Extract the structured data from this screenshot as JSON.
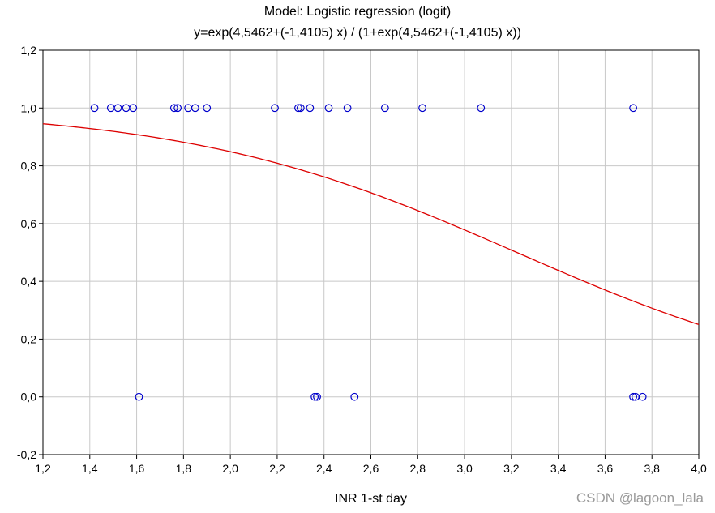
{
  "chart_data": {
    "type": "scatter",
    "title": "Model: Logistic regression (logit)",
    "subtitle": "y=exp(4,5462+(-1,4105) x) / (1+exp(4,5462+(-1,4105) x))",
    "xlabel": "INR 1-st day",
    "ylabel": "",
    "xlim": [
      1.2,
      4.0
    ],
    "ylim": [
      -0.2,
      1.2
    ],
    "grid": true,
    "x_ticks": [
      1.2,
      1.4,
      1.6,
      1.8,
      2.0,
      2.2,
      2.4,
      2.6,
      2.8,
      3.0,
      3.2,
      3.4,
      3.6,
      3.8,
      4.0
    ],
    "x_tick_labels": [
      "1,2",
      "1,4",
      "1,6",
      "1,8",
      "2,0",
      "2,2",
      "2,4",
      "2,6",
      "2,8",
      "3,0",
      "3,2",
      "3,4",
      "3,6",
      "3,8",
      "4,0"
    ],
    "y_ticks": [
      -0.2,
      0.0,
      0.2,
      0.4,
      0.6,
      0.8,
      1.0,
      1.2
    ],
    "y_tick_labels": [
      "-0,2",
      "0,0",
      "0,2",
      "0,4",
      "0,6",
      "0,8",
      "1,0",
      "1,2"
    ],
    "points": {
      "color": "#0000cc",
      "x": [
        1.42,
        1.49,
        1.52,
        1.555,
        1.585,
        1.76,
        1.775,
        1.82,
        1.85,
        1.9,
        2.19,
        2.29,
        2.3,
        2.34,
        2.42,
        2.5,
        2.66,
        2.82,
        3.07,
        3.72,
        1.61,
        2.36,
        2.37,
        2.53,
        3.72,
        3.73,
        3.76
      ],
      "y": [
        1,
        1,
        1,
        1,
        1,
        1,
        1,
        1,
        1,
        1,
        1,
        1,
        1,
        1,
        1,
        1,
        1,
        1,
        1,
        1,
        0,
        0,
        0,
        0,
        0,
        0,
        0
      ]
    },
    "fit_curve": {
      "color": "#dd0000",
      "intercept": 4.5462,
      "slope": -1.4105
    }
  },
  "watermark": "CSDN @lagoon_lala"
}
